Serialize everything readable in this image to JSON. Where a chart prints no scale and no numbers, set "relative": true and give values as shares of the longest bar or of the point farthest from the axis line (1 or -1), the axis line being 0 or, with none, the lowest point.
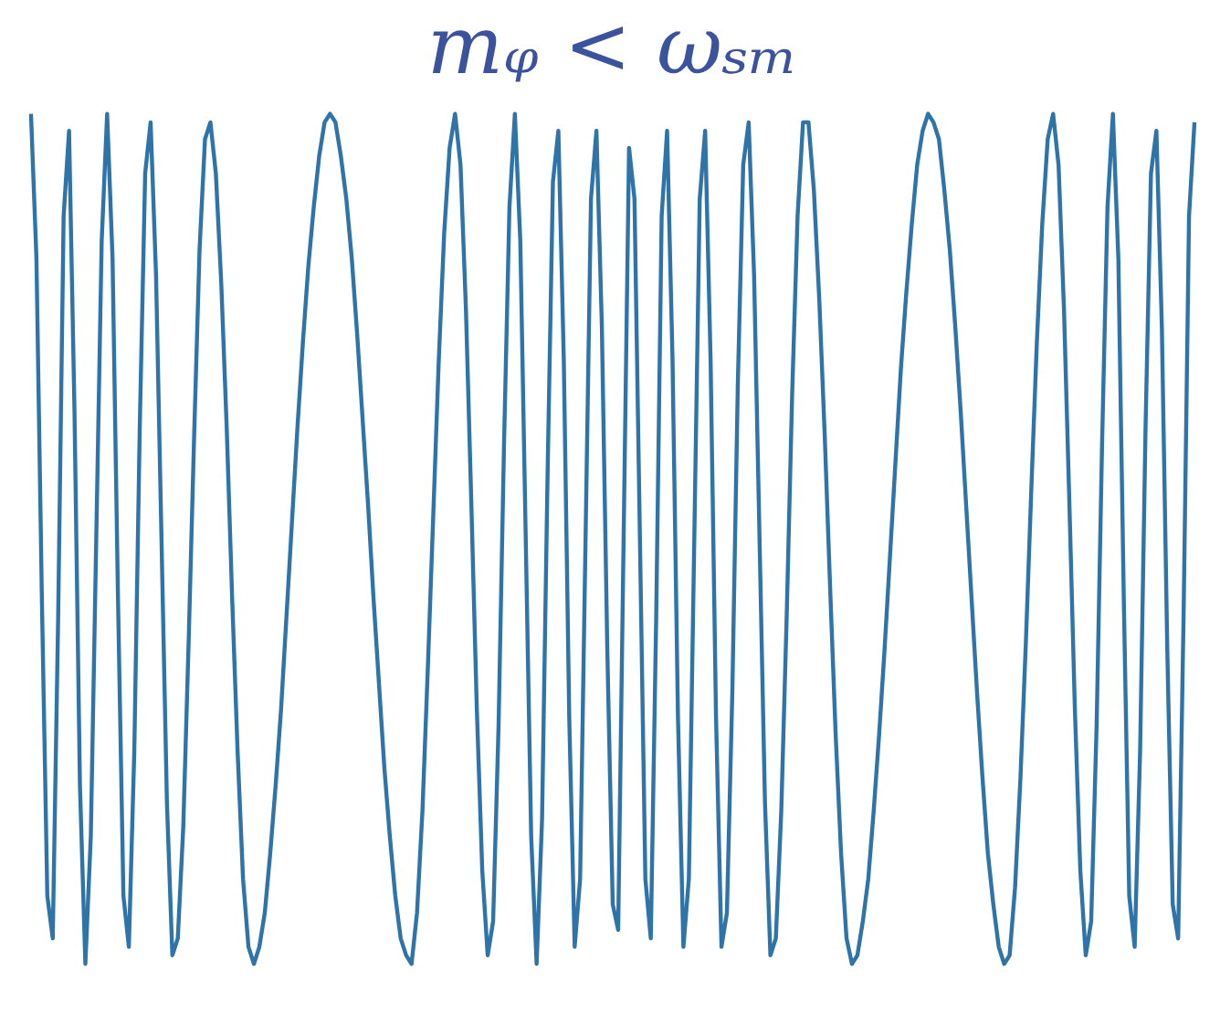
{
  "chart_data": {
    "type": "line",
    "title": "mᵩ < ωₛₘ",
    "relative": true,
    "categories": [
      null,
      null,
      null,
      null,
      null,
      null,
      null,
      null,
      null,
      null,
      null,
      null,
      null,
      null,
      null,
      null,
      null,
      null,
      null,
      null,
      null,
      null,
      null,
      null,
      null,
      null,
      null,
      null,
      null,
      null,
      null,
      null,
      null,
      null,
      null,
      null,
      null,
      null,
      null,
      null,
      null,
      null,
      null,
      null,
      null,
      null,
      null,
      null,
      null,
      null,
      null,
      null,
      null,
      null,
      null,
      null,
      null,
      null,
      null,
      null,
      null,
      null,
      null,
      null,
      null,
      null,
      null,
      null,
      null,
      null,
      null,
      null,
      null,
      null,
      null,
      null,
      null,
      null,
      null,
      null,
      null,
      null,
      null,
      null,
      null,
      null,
      null,
      null,
      null,
      null,
      null,
      null,
      null,
      null,
      null,
      null,
      null,
      null,
      null,
      null,
      null,
      null,
      null,
      null,
      null,
      null,
      null,
      null,
      null,
      null,
      null,
      null,
      null,
      null,
      null,
      null,
      null,
      null,
      null,
      null,
      null,
      null,
      null,
      null,
      null,
      null,
      null,
      null,
      null,
      null,
      null,
      null,
      null,
      null,
      null,
      null,
      null,
      null,
      null,
      null,
      null,
      null,
      null,
      null,
      null,
      null,
      null,
      null,
      null,
      null,
      null,
      null,
      null,
      null,
      null,
      null,
      null,
      null,
      null,
      null,
      null,
      null,
      null,
      null,
      null,
      null,
      null,
      null,
      null,
      null,
      null,
      null,
      null,
      null,
      null,
      null,
      null,
      null,
      null,
      null,
      null,
      null,
      null,
      null,
      null,
      null,
      null,
      null,
      null,
      null,
      null,
      null,
      null,
      null,
      null,
      null,
      null,
      null,
      null,
      null,
      null,
      null,
      null,
      null,
      null,
      null,
      null,
      null,
      null,
      null,
      null,
      null,
      null,
      null,
      null
    ],
    "series": [
      {
        "color": "#2f74a8",
        "values": [
          1,
          0.83,
          0.43,
          0.08,
          0.03,
          0.41,
          0.88,
          0.98,
          0.65,
          0.21,
          0,
          0.15,
          0.5,
          0.85,
          1,
          0.83,
          0.43,
          0.08,
          0.02,
          0.25,
          0.63,
          0.93,
          0.99,
          0.81,
          0.5,
          0.19,
          0.01,
          0.03,
          0.16,
          0.38,
          0.62,
          0.84,
          0.97,
          0.99,
          0.93,
          0.8,
          0.63,
          0.43,
          0.25,
          0.1,
          0.02,
          0,
          0.02,
          0.06,
          0.13,
          0.21,
          0.3,
          0.41,
          0.52,
          0.63,
          0.73,
          0.82,
          0.89,
          0.95,
          0.99,
          1,
          0.99,
          0.95,
          0.9,
          0.83,
          0.74,
          0.64,
          0.54,
          0.43,
          0.33,
          0.23,
          0.15,
          0.08,
          0.03,
          0.01,
          0,
          0.06,
          0.18,
          0.35,
          0.53,
          0.71,
          0.86,
          0.96,
          1,
          0.94,
          0.77,
          0.54,
          0.3,
          0.11,
          0.01,
          0.05,
          0.28,
          0.61,
          0.89,
          1,
          0.85,
          0.5,
          0.15,
          0,
          0.17,
          0.57,
          0.92,
          0.98,
          0.71,
          0.29,
          0.02,
          0.1,
          0.5,
          0.9,
          0.98,
          0.75,
          0.37,
          0.07,
          0.04,
          0.5,
          0.96,
          0.9,
          0.5,
          0.1,
          0.03,
          0.41,
          0.88,
          0.98,
          0.71,
          0.29,
          0.02,
          0.1,
          0.5,
          0.9,
          0.98,
          0.71,
          0.29,
          0.02,
          0.06,
          0.32,
          0.68,
          0.94,
          0.99,
          0.81,
          0.5,
          0.19,
          0.01,
          0.03,
          0.18,
          0.41,
          0.67,
          0.88,
          0.99,
          0.99,
          0.91,
          0.78,
          0.62,
          0.44,
          0.27,
          0.13,
          0.03,
          0,
          0.01,
          0.05,
          0.1,
          0.18,
          0.27,
          0.37,
          0.48,
          0.59,
          0.7,
          0.79,
          0.87,
          0.94,
          0.98,
          1,
          0.99,
          0.97,
          0.91,
          0.84,
          0.75,
          0.65,
          0.54,
          0.43,
          0.32,
          0.22,
          0.13,
          0.07,
          0.02,
          0,
          0.01,
          0.09,
          0.22,
          0.38,
          0.56,
          0.73,
          0.87,
          0.97,
          1,
          0.94,
          0.77,
          0.54,
          0.3,
          0.11,
          0.01,
          0.05,
          0.28,
          0.61,
          0.89,
          1,
          0.83,
          0.43,
          0.08,
          0.02,
          0.25,
          0.63,
          0.93,
          0.98,
          0.75,
          0.37,
          0.07,
          0.03,
          0.41,
          0.88,
          0.99
        ]
      }
    ]
  }
}
